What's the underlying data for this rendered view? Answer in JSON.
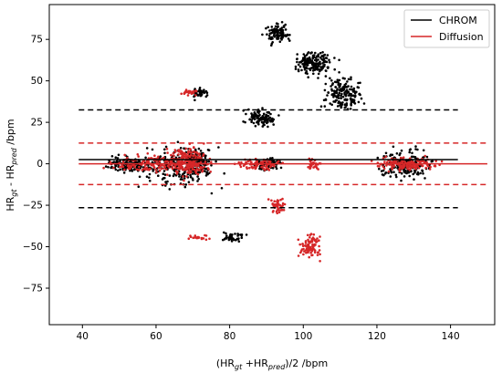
{
  "chart_data": {
    "type": "scatter",
    "xlabel": {
      "base": "(HR",
      "sub1": "gt",
      "mid": " +HR",
      "sub2": "pred",
      "end": ")/2 /bpm"
    },
    "ylabel": {
      "base": "HR",
      "sub1": "gt",
      "mid": " - HR",
      "sub2": "pred",
      "end": " /bpm"
    },
    "xlim": [
      31,
      152
    ],
    "ylim": [
      -97,
      96
    ],
    "xticks": [
      40,
      60,
      80,
      100,
      120,
      140
    ],
    "yticks": [
      -75,
      -50,
      -25,
      0,
      25,
      50,
      75
    ],
    "grid": false,
    "legend": {
      "placement": "top-right"
    },
    "series": [
      {
        "name": "CHROM",
        "color": "#000000",
        "mean": 2.5,
        "upper_loa": 32.5,
        "lower_loa": -26.5,
        "line_x": [
          39,
          142
        ],
        "clusters": [
          {
            "x": [
              44,
              62
            ],
            "y": [
              -7,
              7
            ]
          },
          {
            "x": [
              52,
              80
            ],
            "y": [
              -20,
              15
            ]
          },
          {
            "x": [
              66,
              76
            ],
            "y": [
              -12,
              12
            ]
          },
          {
            "x": [
              85,
              96
            ],
            "y": [
              -5,
              5
            ]
          },
          {
            "x": [
              117,
              138
            ],
            "y": [
              -12,
              12
            ]
          },
          {
            "x": [
              88,
              98
            ],
            "y": [
              70,
              88
            ]
          },
          {
            "x": [
              96,
              110
            ],
            "y": [
              50,
              72
            ]
          },
          {
            "x": [
              104,
              118
            ],
            "y": [
              30,
              55
            ]
          },
          {
            "x": [
              76,
              86
            ],
            "y": [
              -48,
              -40
            ]
          },
          {
            "x": [
              68,
              76
            ],
            "y": [
              38,
              47
            ]
          },
          {
            "x": [
              82,
              94
            ],
            "y": [
              20,
              35
            ]
          }
        ]
      },
      {
        "name": "Diffusion",
        "color": "#d62728",
        "mean": 0.0,
        "upper_loa": 12.5,
        "lower_loa": -12.5,
        "line_x": [
          39,
          150
        ],
        "clusters": [
          {
            "x": [
              44,
              78
            ],
            "y": [
              -8,
              8
            ]
          },
          {
            "x": [
              62,
              76
            ],
            "y": [
              -12,
              15
            ]
          },
          {
            "x": [
              80,
              96
            ],
            "y": [
              -5,
              5
            ]
          },
          {
            "x": [
              100,
              106
            ],
            "y": [
              -6,
              4
            ]
          },
          {
            "x": [
              117,
              140
            ],
            "y": [
              -6,
              6
            ]
          },
          {
            "x": [
              66,
              72
            ],
            "y": [
              40,
              47
            ]
          },
          {
            "x": [
              68,
              75
            ],
            "y": [
              -47,
              -42
            ]
          },
          {
            "x": [
              90,
              96
            ],
            "y": [
              -32,
              -18
            ]
          },
          {
            "x": [
              98,
              106
            ],
            "y": [
              -60,
              -40
            ]
          }
        ]
      }
    ]
  }
}
